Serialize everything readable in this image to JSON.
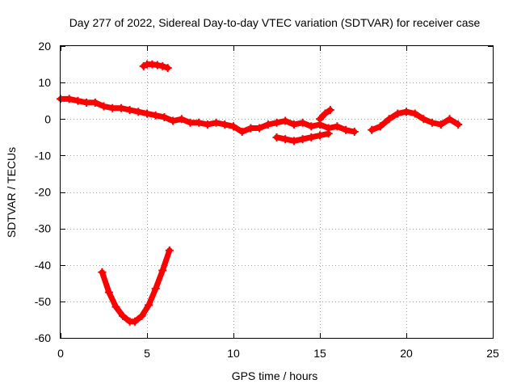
{
  "chart_data": {
    "type": "scatter",
    "title": "Day 277 of 2022, Sidereal Day-to-day VTEC variation (SDTVAR) for receiver case",
    "xlabel": "GPS time / hours",
    "ylabel": "SDTVAR / TECUs",
    "xlim": [
      0,
      25
    ],
    "ylim": [
      -60,
      20
    ],
    "xticks": [
      0,
      5,
      10,
      15,
      20,
      25
    ],
    "yticks": [
      -60,
      -50,
      -40,
      -30,
      -20,
      -10,
      0,
      10,
      20
    ],
    "xtick_labels": [
      "0",
      "5",
      "10",
      "15",
      "20",
      "25"
    ],
    "ytick_labels": [
      "-60",
      "-50",
      "-40",
      "-30",
      "-20",
      "-10",
      "0",
      "10",
      "20"
    ],
    "grid": true,
    "marker": "plus",
    "color": "#ff0000",
    "series": [
      {
        "name": "main band",
        "x": [
          0.0,
          0.5,
          1.0,
          1.5,
          2.0,
          2.5,
          3.0,
          3.5,
          4.0,
          4.5,
          5.0,
          5.5,
          6.0,
          6.5,
          7.0,
          7.5,
          8.0,
          8.5,
          9.0,
          9.5,
          10.0,
          10.5,
          11.0,
          11.5,
          12.0,
          12.5,
          13.0,
          13.5,
          14.0,
          14.5,
          15.0,
          15.5,
          16.0,
          16.5,
          17.0
        ],
        "y": [
          5.5,
          5.5,
          5.0,
          4.5,
          4.5,
          3.5,
          3.0,
          3.0,
          2.5,
          2.0,
          1.5,
          1.0,
          0.5,
          -0.5,
          0.0,
          -1.0,
          -1.0,
          -1.5,
          -1.0,
          -1.5,
          -2.0,
          -3.5,
          -2.5,
          -2.5,
          -1.5,
          -1.0,
          -0.5,
          -1.5,
          -1.0,
          -2.0,
          -1.5,
          -2.5,
          -2.0,
          -3.0,
          -3.5
        ]
      },
      {
        "name": "upper segment",
        "x": [
          4.8,
          5.0,
          5.3,
          5.6,
          5.9,
          6.2
        ],
        "y": [
          14.5,
          15.0,
          15.0,
          14.8,
          14.5,
          14.0
        ]
      },
      {
        "name": "lower segment",
        "x": [
          12.5,
          13.0,
          13.5,
          14.0,
          14.5,
          15.0,
          15.5
        ],
        "y": [
          -5.0,
          -5.5,
          -6.0,
          -5.5,
          -5.0,
          -4.5,
          -4.0
        ]
      },
      {
        "name": "spur near 15.5h",
        "x": [
          15.0,
          15.3,
          15.6
        ],
        "y": [
          0.0,
          1.5,
          2.5
        ]
      },
      {
        "name": "late segment",
        "x": [
          18.0,
          18.5,
          19.0,
          19.5,
          20.0,
          20.5,
          21.0,
          21.5,
          22.0,
          22.5,
          23.0
        ],
        "y": [
          -3.0,
          -2.0,
          0.0,
          1.5,
          2.0,
          1.5,
          0.0,
          -1.0,
          -1.5,
          0.0,
          -1.5
        ]
      },
      {
        "name": "U-shaped arc",
        "x": [
          2.4,
          2.8,
          3.2,
          3.6,
          4.0,
          4.3,
          4.7,
          5.1,
          5.5,
          5.9,
          6.3
        ],
        "y": [
          -42.0,
          -47.5,
          -51.5,
          -54.0,
          -55.5,
          -55.5,
          -54.0,
          -51.0,
          -46.5,
          -41.5,
          -36.0
        ]
      }
    ]
  }
}
